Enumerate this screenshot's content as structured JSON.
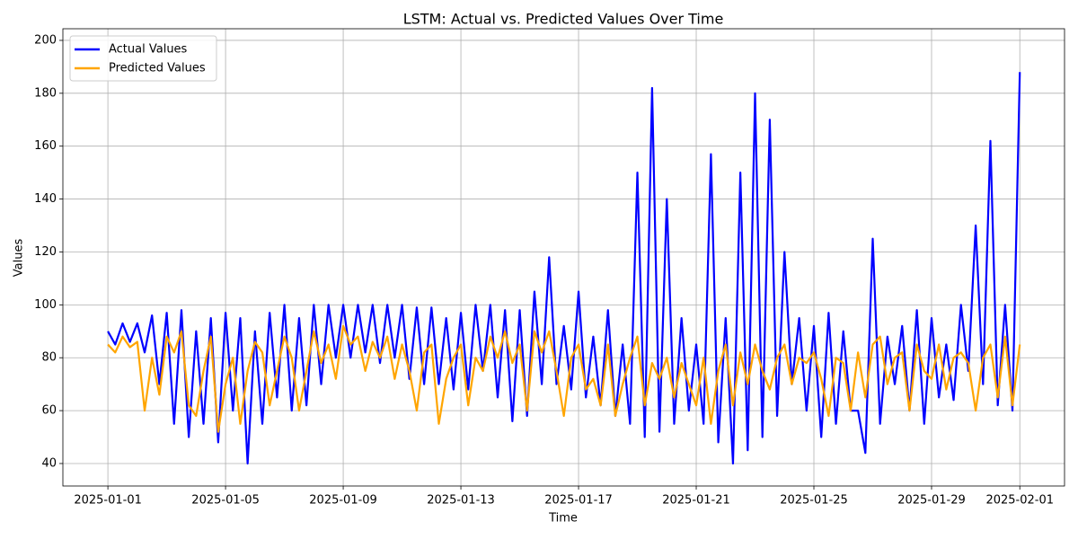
{
  "chart_data": {
    "type": "line",
    "title": "LSTM: Actual vs. Predicted Values Over Time",
    "x_label": "Time",
    "y_label": "Values",
    "x": [
      0,
      0.25,
      0.5,
      0.75,
      1,
      1.25,
      1.5,
      1.75,
      2,
      2.25,
      2.5,
      2.75,
      3,
      3.25,
      3.5,
      3.75,
      4,
      4.25,
      4.5,
      4.75,
      5,
      5.25,
      5.5,
      5.75,
      6,
      6.25,
      6.5,
      6.75,
      7,
      7.25,
      7.5,
      7.75,
      8,
      8.25,
      8.5,
      8.75,
      9,
      9.25,
      9.5,
      9.75,
      10,
      10.25,
      10.5,
      10.75,
      11,
      11.25,
      11.5,
      11.75,
      12,
      12.25,
      12.5,
      12.75,
      13,
      13.25,
      13.5,
      13.75,
      14,
      14.25,
      14.5,
      14.75,
      15,
      15.25,
      15.5,
      15.75,
      16,
      16.25,
      16.5,
      16.75,
      17,
      17.25,
      17.5,
      17.75,
      18,
      18.25,
      18.5,
      18.75,
      19,
      19.25,
      19.5,
      19.75,
      20,
      20.25,
      20.5,
      20.75,
      21,
      21.25,
      21.5,
      21.75,
      22,
      22.25,
      22.5,
      22.75,
      23,
      23.25,
      23.5,
      23.75,
      24,
      24.25,
      24.5,
      24.75,
      25,
      25.25,
      25.5,
      25.75,
      26,
      26.25,
      26.5,
      26.75,
      27,
      27.25,
      27.5,
      27.75,
      28,
      28.25,
      28.5,
      28.75,
      29,
      29.25,
      29.5,
      29.75,
      30,
      30.25,
      30.5,
      30.75,
      31
    ],
    "series": [
      {
        "name": "Actual Values",
        "color": "#0000ff",
        "values": [
          90,
          85,
          93,
          86,
          93,
          82,
          96,
          70,
          97,
          55,
          98,
          50,
          90,
          55,
          95,
          48,
          97,
          60,
          95,
          40,
          90,
          55,
          97,
          65,
          100,
          60,
          95,
          62,
          100,
          70,
          100,
          80,
          100,
          80,
          100,
          82,
          100,
          78,
          100,
          80,
          100,
          72,
          99,
          70,
          99,
          70,
          95,
          68,
          97,
          68,
          100,
          75,
          100,
          65,
          98,
          56,
          98,
          58,
          105,
          70,
          118,
          70,
          92,
          68,
          105,
          65,
          88,
          62,
          98,
          58,
          85,
          55,
          150,
          50,
          182,
          52,
          140,
          55,
          95,
          60,
          85,
          55,
          157,
          48,
          95,
          40,
          150,
          45,
          180,
          50,
          170,
          58,
          120,
          70,
          95,
          60,
          92,
          50,
          97,
          55,
          90,
          60,
          60,
          44,
          125,
          55,
          88,
          70,
          92,
          60,
          98,
          55,
          95,
          65,
          85,
          64,
          100,
          75,
          130,
          70,
          162,
          62,
          100,
          60,
          188
        ]
      },
      {
        "name": "Predicted Values",
        "color": "#ffa500",
        "values": [
          85,
          82,
          88,
          84,
          86,
          60,
          80,
          66,
          88,
          82,
          90,
          62,
          58,
          75,
          88,
          52,
          70,
          80,
          55,
          75,
          86,
          82,
          62,
          75,
          88,
          80,
          60,
          75,
          90,
          78,
          85,
          72,
          92,
          85,
          88,
          75,
          86,
          80,
          88,
          72,
          85,
          75,
          60,
          82,
          85,
          55,
          72,
          80,
          85,
          62,
          80,
          75,
          88,
          80,
          90,
          78,
          85,
          60,
          90,
          82,
          90,
          75,
          58,
          80,
          85,
          68,
          72,
          62,
          85,
          58,
          70,
          80,
          88,
          62,
          78,
          72,
          80,
          65,
          78,
          70,
          62,
          80,
          55,
          75,
          85,
          62,
          82,
          70,
          85,
          75,
          68,
          80,
          85,
          70,
          80,
          78,
          82,
          72,
          58,
          80,
          78,
          60,
          82,
          65,
          85,
          88,
          70,
          80,
          82,
          60,
          85,
          75,
          72,
          85,
          68,
          80,
          82,
          78,
          60,
          80,
          85,
          65,
          88,
          62,
          85
        ]
      }
    ],
    "xlim": [
      -1.53,
      32.52
    ],
    "ylim": [
      31.5,
      204.4
    ],
    "xticks": [
      {
        "value": 0,
        "label": "2025-01-01"
      },
      {
        "value": 4,
        "label": "2025-01-05"
      },
      {
        "value": 8,
        "label": "2025-01-09"
      },
      {
        "value": 12,
        "label": "2025-01-13"
      },
      {
        "value": 16,
        "label": "2025-01-17"
      },
      {
        "value": 20,
        "label": "2025-01-21"
      },
      {
        "value": 24,
        "label": "2025-01-25"
      },
      {
        "value": 28,
        "label": "2025-01-29"
      },
      {
        "value": 31,
        "label": "2025-02-01"
      }
    ],
    "yticks": [
      40,
      60,
      80,
      100,
      120,
      140,
      160,
      180,
      200
    ],
    "grid": true,
    "legend": "upper-left"
  }
}
